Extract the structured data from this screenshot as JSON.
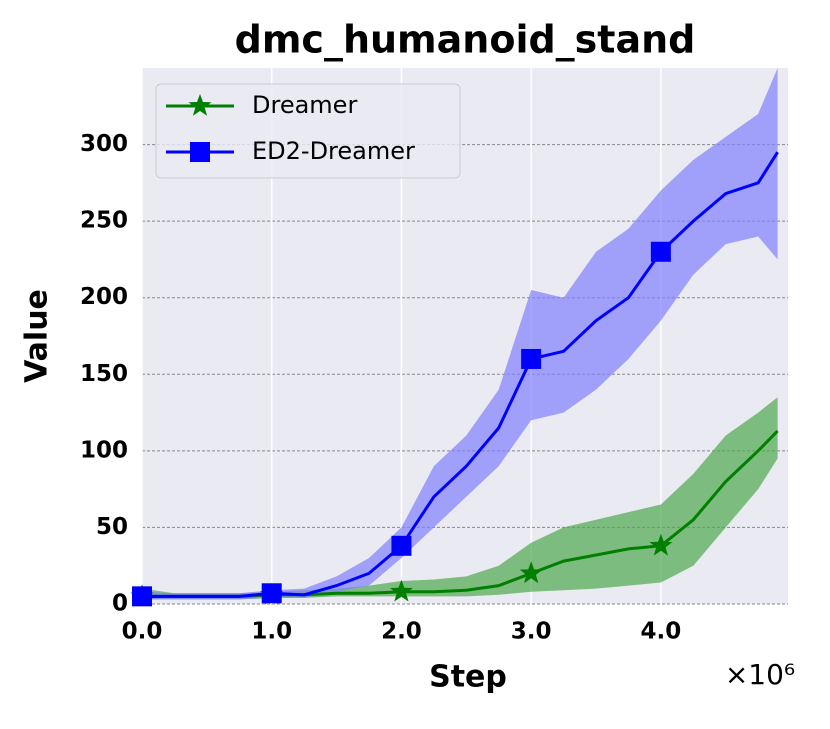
{
  "chart_data": {
    "type": "line",
    "title": "dmc_humanoid_stand",
    "xlabel": "Step",
    "ylabel": "Value",
    "x_multiplier": "×10⁶",
    "x": [
      0,
      0.25,
      0.5,
      0.75,
      1,
      1.25,
      1.5,
      1.75,
      2,
      2.25,
      2.5,
      2.75,
      3,
      3.25,
      3.5,
      3.75,
      4,
      4.25,
      4.5,
      4.75,
      4.9
    ],
    "series": [
      {
        "name": "Dreamer",
        "color": "#007f00",
        "band_color": "#4fa84f",
        "marker": "star",
        "values": [
          5,
          5,
          5,
          5,
          6,
          6,
          7,
          7,
          8,
          8,
          9,
          12,
          20,
          28,
          32,
          36,
          38,
          55,
          80,
          100,
          113
        ],
        "lower": [
          3,
          3,
          3,
          3,
          4,
          4,
          5,
          5,
          5,
          5,
          5,
          6,
          8,
          9,
          10,
          12,
          14,
          25,
          50,
          75,
          95
        ],
        "upper": [
          10,
          7,
          7,
          7,
          8,
          9,
          10,
          12,
          15,
          16,
          18,
          25,
          40,
          50,
          55,
          60,
          65,
          85,
          110,
          125,
          135
        ]
      },
      {
        "name": "ED2-Dreamer",
        "color": "#0000ff",
        "band_color": "#8080ff",
        "marker": "square",
        "values": [
          5,
          5,
          5,
          5,
          7,
          6,
          12,
          20,
          38,
          70,
          90,
          115,
          160,
          165,
          185,
          200,
          230,
          250,
          268,
          275,
          295
        ],
        "lower": [
          3,
          3,
          3,
          3,
          4,
          4,
          8,
          12,
          30,
          50,
          70,
          90,
          120,
          125,
          140,
          160,
          185,
          215,
          235,
          240,
          225
        ],
        "upper": [
          8,
          7,
          7,
          7,
          9,
          10,
          18,
          30,
          50,
          90,
          110,
          140,
          205,
          200,
          230,
          245,
          270,
          290,
          305,
          320,
          350
        ]
      }
    ],
    "xlim": [
      0,
      4.98
    ],
    "ylim": [
      0,
      350
    ],
    "xticks": [
      {
        "value": 0,
        "label": "0.0"
      },
      {
        "value": 1,
        "label": "1.0"
      },
      {
        "value": 2,
        "label": "2.0"
      },
      {
        "value": 3,
        "label": "3.0"
      },
      {
        "value": 4,
        "label": "4.0"
      }
    ],
    "yticks": [
      0,
      50,
      100,
      150,
      200,
      250,
      300
    ],
    "grid": true,
    "legend": "upper-left",
    "marker_every": 1
  }
}
